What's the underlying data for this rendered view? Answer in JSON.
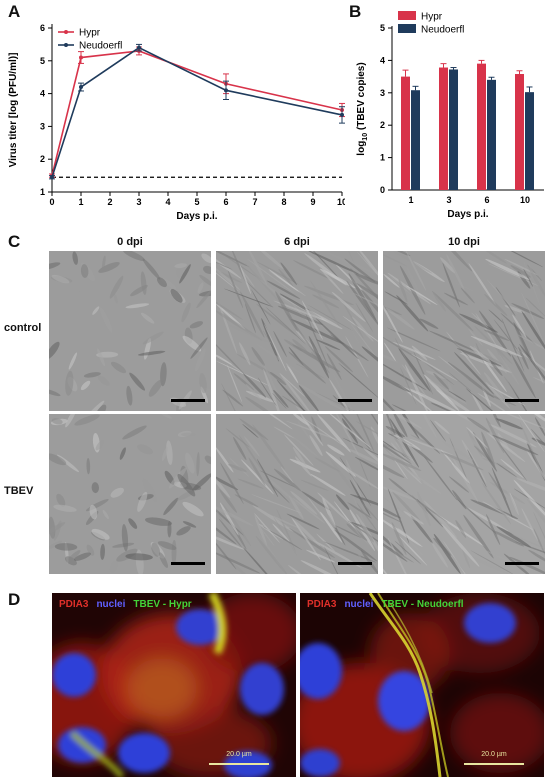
{
  "panels": {
    "a": "A",
    "b": "B",
    "c": "C",
    "d": "D"
  },
  "chart_data": [
    {
      "type": "line",
      "ylabel": "Virus titer [log (PFU/ml)]",
      "xlabel": "Days p.i.",
      "xlim": [
        0,
        10
      ],
      "ylim": [
        1,
        6
      ],
      "x_ticks": [
        "0",
        "1",
        "2",
        "3",
        "4",
        "5",
        "6",
        "7",
        "8",
        "9",
        "10"
      ],
      "y_ticks": [
        "1",
        "2",
        "3",
        "4",
        "5",
        "6"
      ],
      "legend_position": "top-left",
      "detection_limit": 1.45,
      "series": [
        {
          "name": "Hypr",
          "color": "#d8334a",
          "x": [
            0,
            1,
            3,
            6,
            10
          ],
          "y": [
            1.5,
            5.1,
            5.3,
            4.3,
            3.5
          ],
          "err": [
            0.05,
            0.18,
            0.12,
            0.3,
            0.2
          ]
        },
        {
          "name": "Neudoerfl",
          "color": "#1f3b5c",
          "x": [
            0,
            1,
            3,
            6,
            10
          ],
          "y": [
            1.45,
            4.2,
            5.4,
            4.1,
            3.35
          ],
          "err": [
            0.05,
            0.12,
            0.1,
            0.28,
            0.25
          ]
        }
      ]
    },
    {
      "type": "bar",
      "ylabel_prefix": "log",
      "ylabel_sub": "10",
      "ylabel_suffix": " (TBEV copies)",
      "xlabel": "Days p.i.",
      "categories": [
        "1",
        "3",
        "6",
        "10"
      ],
      "ylim": [
        0,
        5
      ],
      "y_ticks": [
        "0",
        "1",
        "2",
        "3",
        "4",
        "5"
      ],
      "legend_position": "top",
      "series": [
        {
          "name": "Hypr",
          "color": "#d8334a",
          "values": [
            3.5,
            3.78,
            3.9,
            3.58
          ],
          "err": [
            0.2,
            0.12,
            0.1,
            0.1
          ]
        },
        {
          "name": "Neudoerfl",
          "color": "#1f3b5c",
          "values": [
            3.08,
            3.72,
            3.4,
            3.02
          ],
          "err": [
            0.12,
            0.06,
            0.08,
            0.16
          ]
        }
      ]
    }
  ],
  "micrographs": {
    "columns": [
      "0 dpi",
      "6 dpi",
      "10 dpi"
    ],
    "rows": [
      "control",
      "TBEV"
    ]
  },
  "fluorescence": {
    "left": {
      "pdia3": "PDIA3",
      "nuclei": "nuclei",
      "virus": "TBEV - Hypr",
      "scale": "20.0 µm"
    },
    "right": {
      "pdia3": "PDIA3",
      "nuclei": "nuclei",
      "virus": "TBEV - Neudoerfl",
      "scale": "20.0 µm"
    },
    "colors": {
      "pdia3": "#e0302a",
      "nuclei": "#4848e0",
      "virus": "#44d438"
    }
  }
}
